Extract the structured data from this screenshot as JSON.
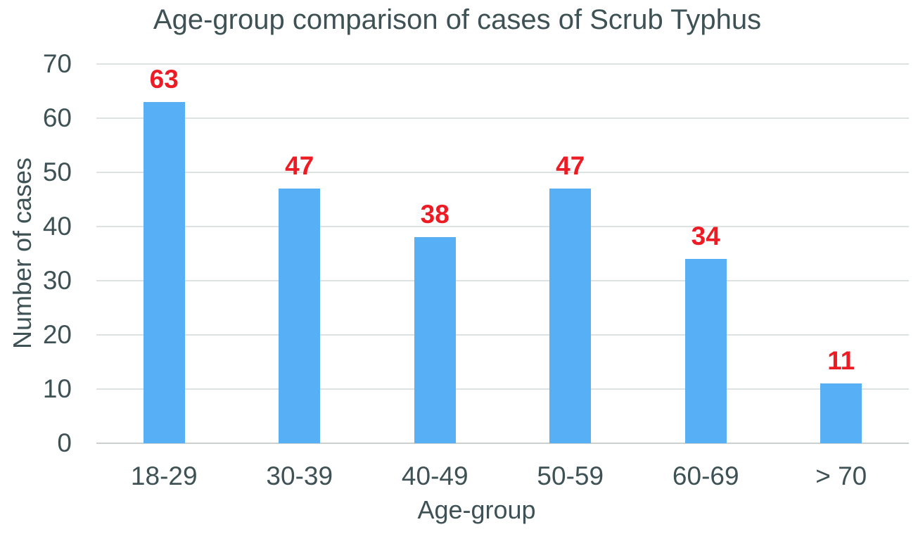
{
  "chart_data": {
    "type": "bar",
    "title": "Age-group comparison of cases of Scrub Typhus",
    "categories": [
      "18-29",
      "30-39",
      "40-49",
      "50-59",
      "60-69",
      "> 70"
    ],
    "values": [
      63,
      47,
      38,
      47,
      34,
      11
    ],
    "xlabel": "Age-group",
    "ylabel": "Number of cases",
    "ylim": [
      0,
      70
    ],
    "ytick_step": 10,
    "yticks": [
      0,
      10,
      20,
      30,
      40,
      50,
      60,
      70
    ],
    "grid": true,
    "legend": "none",
    "data_labels": "above-bars",
    "colors": {
      "bar": "#57B0F5",
      "data_label": "#ED1C24",
      "axis_text": "#3E5154",
      "gridline": "#DDE3E2"
    }
  }
}
